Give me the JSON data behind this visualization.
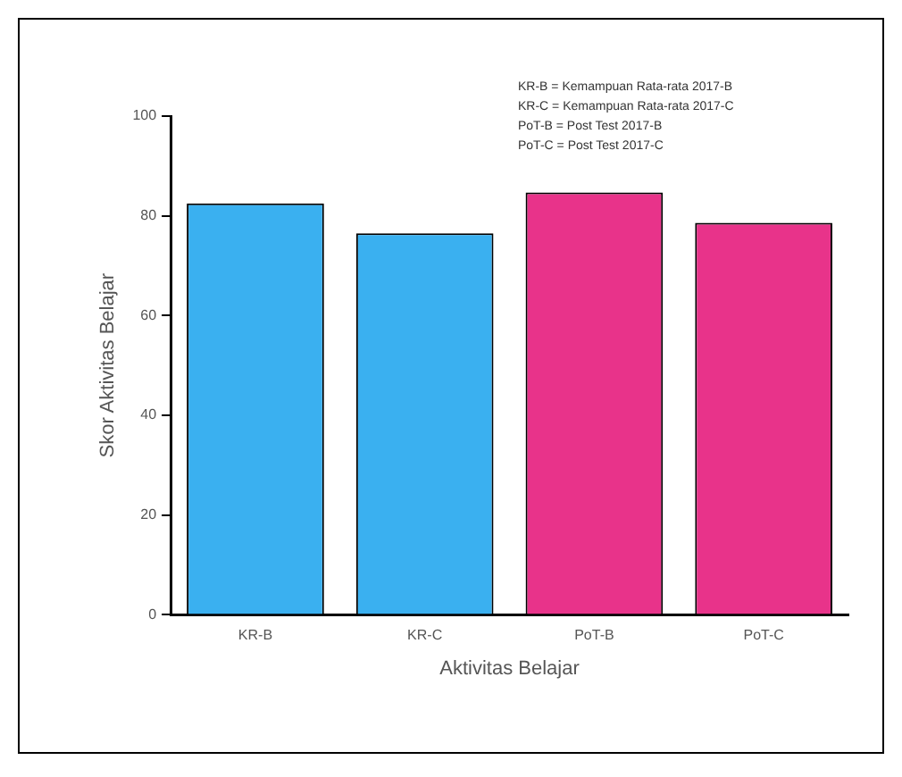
{
  "chart_data": {
    "type": "bar",
    "xlabel": "Aktivitas Belajar",
    "ylabel": "Skor Aktivitas Belajar",
    "categories": [
      "KR-B",
      "KR-C",
      "PoT-B",
      "PoT-C"
    ],
    "values": [
      82.5,
      76.5,
      84.7,
      78.6
    ],
    "colors": [
      "#3ab0f0",
      "#3ab0f0",
      "#e8338a",
      "#e8338a"
    ],
    "ylim": [
      0,
      100
    ],
    "yticks": [
      0,
      20,
      40,
      60,
      80,
      100
    ],
    "grid": false,
    "legend": false,
    "annotations": [
      "KR-B = Kemampuan Rata-rata 2017-B",
      "KR-C = Kemampuan Rata-rata 2017-C",
      "PoT-B = Post Test 2017-B",
      "PoT-C = Post Test 2017-C"
    ]
  }
}
